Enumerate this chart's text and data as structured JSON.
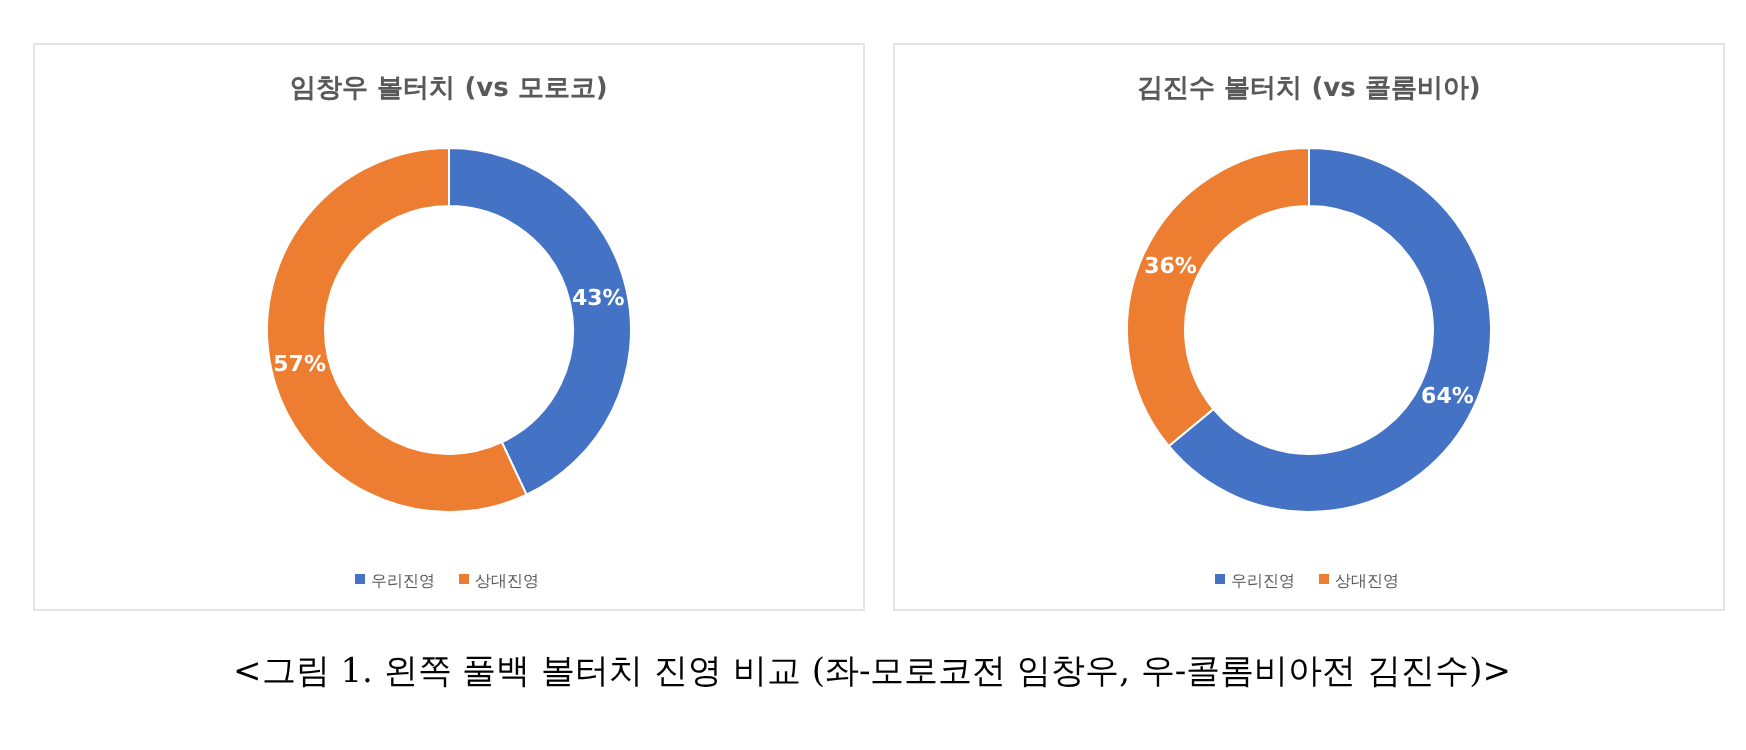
{
  "chart_data": [
    {
      "type": "donut",
      "title": "임창우 볼터치 (vs 모로코)",
      "categories": [
        "우리진영",
        "상대진영"
      ],
      "values": [
        43,
        57
      ],
      "value_labels": [
        "43%",
        "57%"
      ],
      "colors": [
        "#4472c4",
        "#ed7d31"
      ],
      "legend": "bottom",
      "annotations": [
        "<그림 1. 왼쪽 풀백 볼터치 진영 비교 (좌-모로코전 임창우, 우-콜롬비아전 김진수)>"
      ]
    },
    {
      "type": "donut",
      "title": "김진수 볼터치 (vs 콜롬비아)",
      "categories": [
        "우리진영",
        "상대진영"
      ],
      "values": [
        64,
        36
      ],
      "value_labels": [
        "64%",
        "36%"
      ],
      "colors": [
        "#4472c4",
        "#ed7d31"
      ],
      "legend": "bottom"
    }
  ]
}
